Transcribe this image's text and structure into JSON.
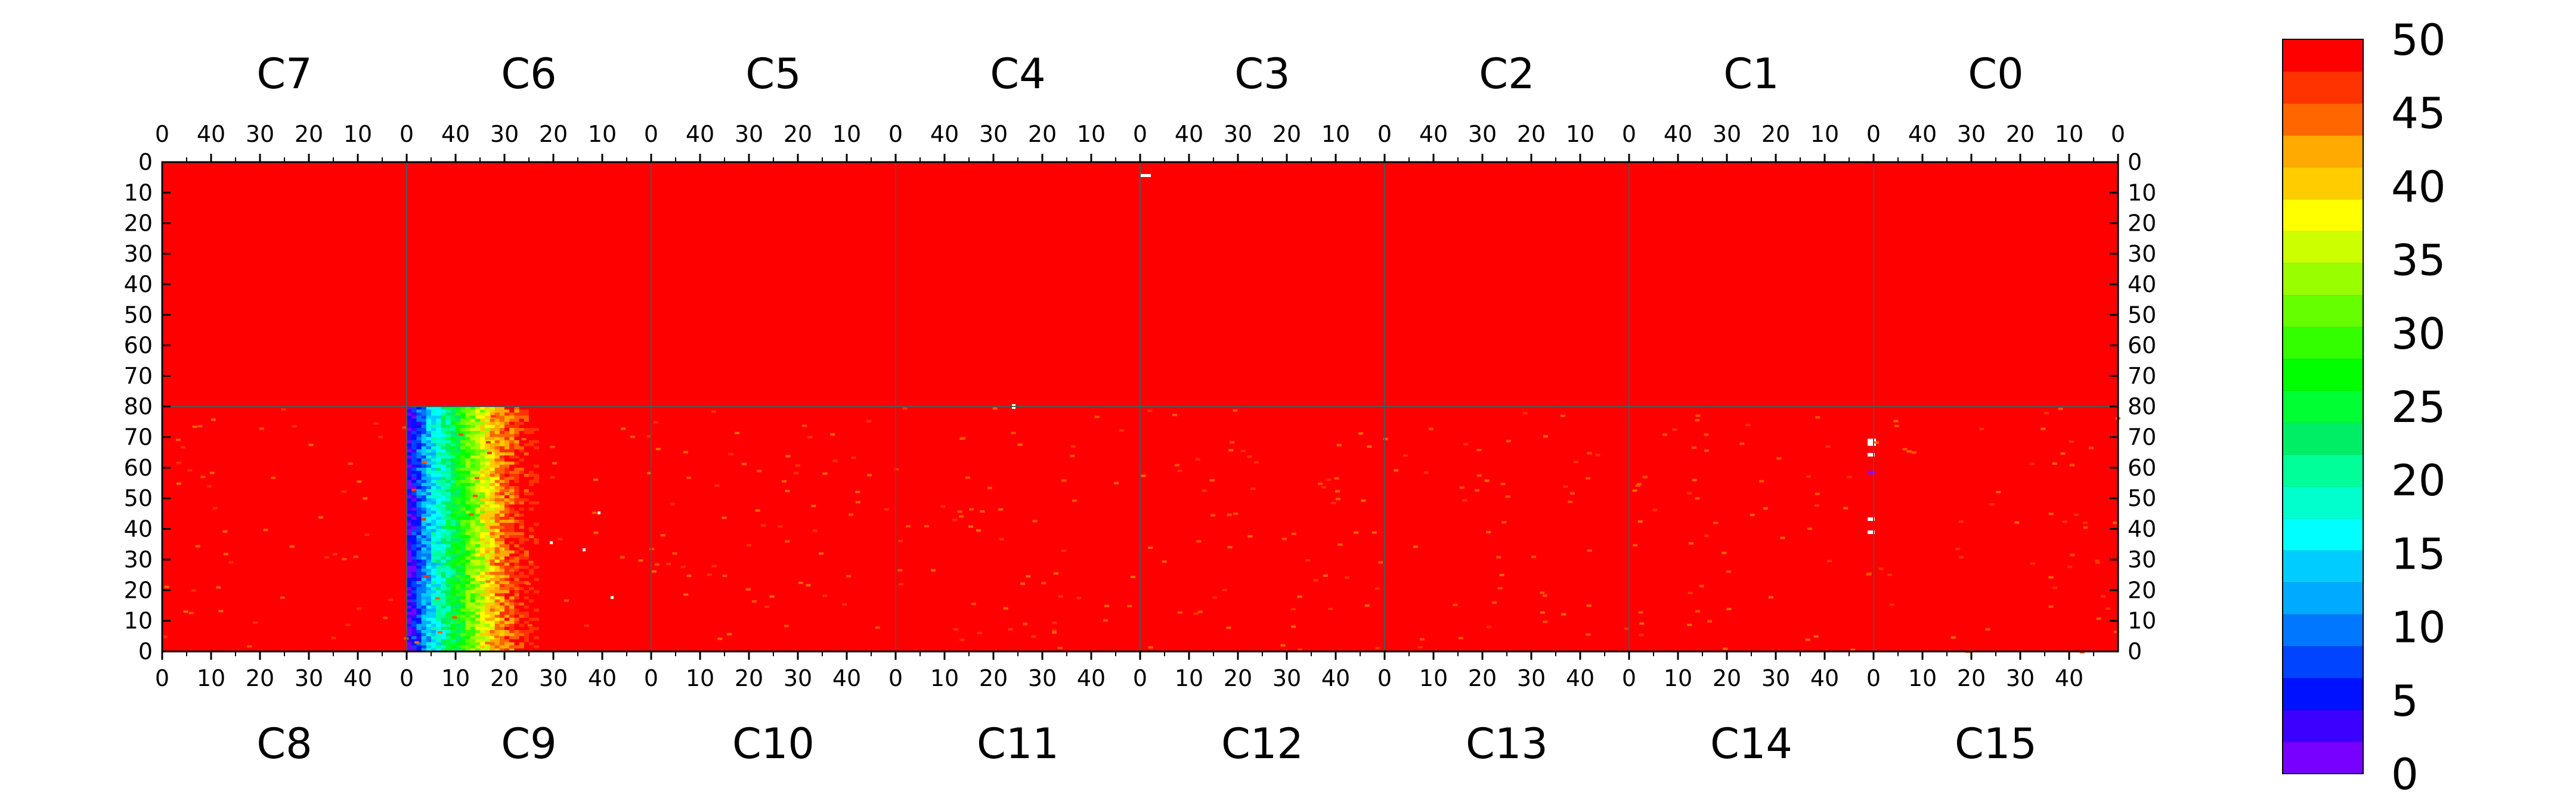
{
  "chart_data": {
    "type": "heatmap",
    "title": "",
    "xlabel": "",
    "ylabel": "",
    "top_panels": [
      "C7",
      "C6",
      "C5",
      "C4",
      "C3",
      "C2",
      "C1",
      "C0"
    ],
    "bottom_panels": [
      "C8",
      "C9",
      "C10",
      "C11",
      "C12",
      "C13",
      "C14",
      "C15"
    ],
    "top_x_ticks": [
      "40",
      "30",
      "20",
      "10",
      "0"
    ],
    "bottom_x_ticks": [
      "0",
      "10",
      "20",
      "30",
      "40"
    ],
    "top_x_ticks_last": "0",
    "top_x_range": [
      0,
      50
    ],
    "bottom_x_range": [
      0,
      50
    ],
    "top_y_ticks": [
      "0",
      "10",
      "20",
      "30",
      "40",
      "50",
      "60",
      "70",
      "80"
    ],
    "bottom_y_ticks": [
      "80",
      "70",
      "60",
      "50",
      "40",
      "30",
      "20",
      "10",
      "0"
    ],
    "top_y_range": [
      0,
      80
    ],
    "bottom_y_range": [
      0,
      80
    ],
    "y_direction": "top half increases downward from 0 to 80; bottom half increases upward from 0 to 80",
    "x_direction": "top panels increase leftward from 0; bottom panels increase rightward from 0",
    "color_scale": {
      "min": 0,
      "max": 50,
      "ticks": [
        "0",
        "5",
        "10",
        "15",
        "20",
        "25",
        "30",
        "35",
        "40",
        "45",
        "50"
      ],
      "colors": [
        "#7700ff",
        "#3c00ff",
        "#0011ff",
        "#0044ff",
        "#0077ff",
        "#00aaff",
        "#00ccff",
        "#00ffff",
        "#00ffcc",
        "#00ff99",
        "#00ee66",
        "#00ff33",
        "#00ff00",
        "#33ff00",
        "#66ff00",
        "#99ff00",
        "#ccff00",
        "#ffff00",
        "#ffcc00",
        "#ffaa00",
        "#ff6600",
        "#ff3300",
        "#ff0000"
      ]
    },
    "background_value": 50,
    "regions": [
      {
        "panel": "C9",
        "description": "gradient from low values near x=0 rising to 50 by x≈25",
        "x_range": [
          0,
          25
        ],
        "y_range": [
          0,
          80
        ],
        "value_profile": [
          [
            0,
            2
          ],
          [
            2,
            8
          ],
          [
            4,
            14
          ],
          [
            6,
            18
          ],
          [
            8,
            22
          ],
          [
            10,
            26
          ],
          [
            12,
            30
          ],
          [
            14,
            34
          ],
          [
            16,
            38
          ],
          [
            18,
            42
          ],
          [
            20,
            45
          ],
          [
            22,
            47
          ],
          [
            24,
            49
          ],
          [
            26,
            50
          ]
        ]
      }
    ],
    "colors": {
      "background": "#ff0000",
      "axis": "#000000",
      "divider": "#555555",
      "outlier": "#ffffff"
    }
  }
}
